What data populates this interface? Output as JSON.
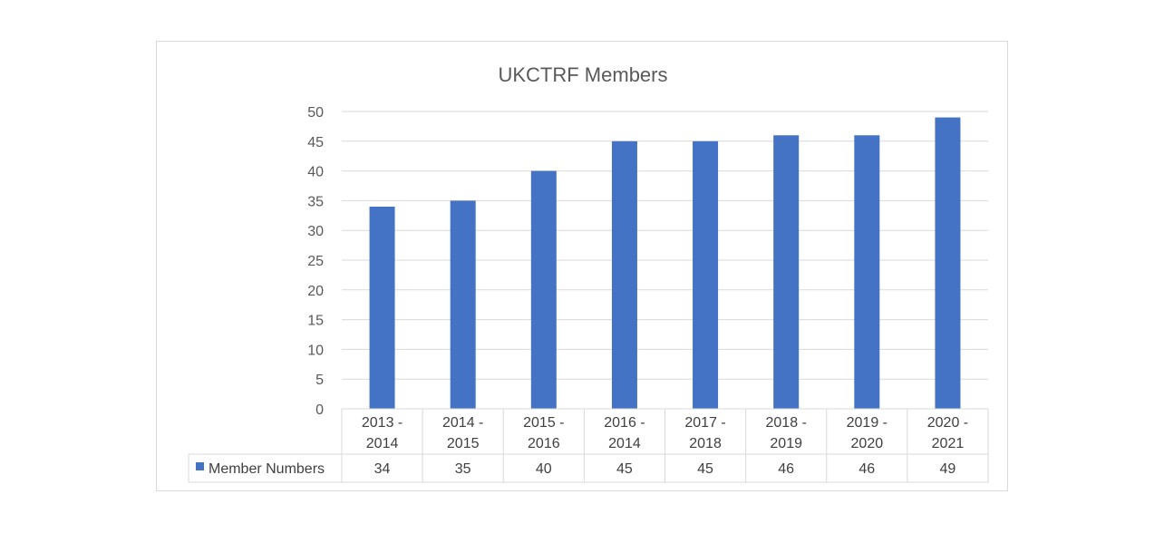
{
  "chart_data": {
    "type": "bar",
    "title": "UKCTRF Members",
    "categories": [
      [
        "2013 -",
        "2014"
      ],
      [
        "2014 -",
        "2015"
      ],
      [
        "2015 -",
        "2016"
      ],
      [
        "2016 -",
        "2014"
      ],
      [
        "2017 -",
        "2018"
      ],
      [
        "2018 -",
        "2019"
      ],
      [
        "2019 -",
        "2020"
      ],
      [
        "2020 -",
        "2021"
      ]
    ],
    "series": [
      {
        "name": "Member Numbers",
        "values": [
          34,
          35,
          40,
          45,
          45,
          46,
          46,
          49
        ],
        "color": "#4472c4"
      }
    ],
    "ylim": [
      0,
      50
    ],
    "yticks": [
      0,
      5,
      10,
      15,
      20,
      25,
      30,
      35,
      40,
      45,
      50
    ],
    "grid": true,
    "legend": "data-table-left",
    "data_table": true,
    "xlabel": "",
    "ylabel": ""
  }
}
